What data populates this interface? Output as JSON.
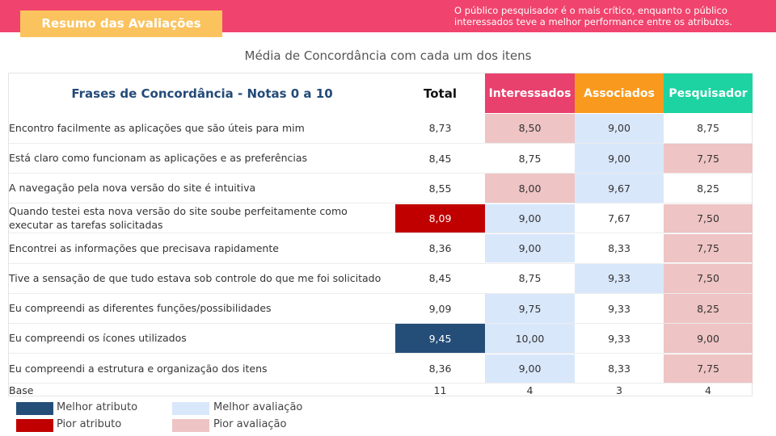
{
  "header": {
    "title": "Resumo das Avaliações",
    "note": "O público pesquisador é o mais crítico, enquanto o público interessados teve a melhor performance entre os atributos."
  },
  "subtitle": "Média de Concordância com cada um dos itens",
  "colors": {
    "header_bar": "#f0436d",
    "title_badge": "#fbc35e",
    "interessados": "#e8416d",
    "associados": "#f99a1f",
    "pesquisador": "#1dd3a2",
    "melhor_atributo": "#244e78",
    "pior_atributo": "#c00000",
    "melhor_avaliacao": "#d9e7fb",
    "pior_avaliacao": "#efc4c4"
  },
  "chart_data": {
    "type": "table",
    "title": "Média de Concordância com cada um dos itens",
    "columns": [
      "Frases de Concordância - Notas 0 a 10",
      "Total",
      "Interessados",
      "Associados",
      "Pesquisador"
    ],
    "rows": [
      {
        "label": "Encontro facilmente as aplicações que são úteis para mim",
        "values": [
          "8,73",
          "8,50",
          "9,00",
          "8,75"
        ],
        "marks": [
          "",
          "pior",
          "melhor",
          ""
        ]
      },
      {
        "label": "Está claro como funcionam as aplicações e as preferências",
        "values": [
          "8,45",
          "8,75",
          "9,00",
          "7,75"
        ],
        "marks": [
          "",
          "",
          "melhor",
          "pior"
        ]
      },
      {
        "label": "A navegação pela nova versão do site é intuitiva",
        "values": [
          "8,55",
          "8,00",
          "9,67",
          "8,25"
        ],
        "marks": [
          "",
          "pior",
          "melhor",
          ""
        ]
      },
      {
        "label": "Quando testei esta nova versão do site soube perfeitamente como executar as tarefas solicitadas",
        "values": [
          "8,09",
          "9,00",
          "7,67",
          "7,50"
        ],
        "marks": [
          "pior_atributo",
          "melhor",
          "",
          "pior"
        ]
      },
      {
        "label": "Encontrei as informações que precisava rapidamente",
        "values": [
          "8,36",
          "9,00",
          "8,33",
          "7,75"
        ],
        "marks": [
          "",
          "melhor",
          "",
          "pior"
        ]
      },
      {
        "label": "Tive a sensação de que tudo estava sob controle do que me foi solicitado",
        "values": [
          "8,45",
          "8,75",
          "9,33",
          "7,50"
        ],
        "marks": [
          "",
          "",
          "melhor",
          "pior"
        ]
      },
      {
        "label": "Eu compreendi as diferentes funções/possibilidades",
        "values": [
          "9,09",
          "9,75",
          "9,33",
          "8,25"
        ],
        "marks": [
          "",
          "melhor",
          "",
          "pior"
        ]
      },
      {
        "label": "Eu compreendi os ícones utilizados",
        "values": [
          "9,45",
          "10,00",
          "9,33",
          "9,00"
        ],
        "marks": [
          "melhor_atributo",
          "melhor",
          "",
          "pior"
        ]
      },
      {
        "label": "Eu compreendi a estrutura e organização dos itens",
        "values": [
          "8,36",
          "9,00",
          "8,33",
          "7,75"
        ],
        "marks": [
          "",
          "melhor",
          "",
          "pior"
        ]
      }
    ],
    "base": {
      "label": "Base",
      "values": [
        "11",
        "4",
        "3",
        "4"
      ]
    }
  },
  "legend": [
    {
      "label": "Melhor atributo",
      "color_key": "melhor_atributo"
    },
    {
      "label": "Melhor avaliação",
      "color_key": "melhor_avaliacao"
    },
    {
      "label": "Pior atributo",
      "color_key": "pior_atributo"
    },
    {
      "label": "Pior avaliação",
      "color_key": "pior_avaliacao"
    }
  ]
}
